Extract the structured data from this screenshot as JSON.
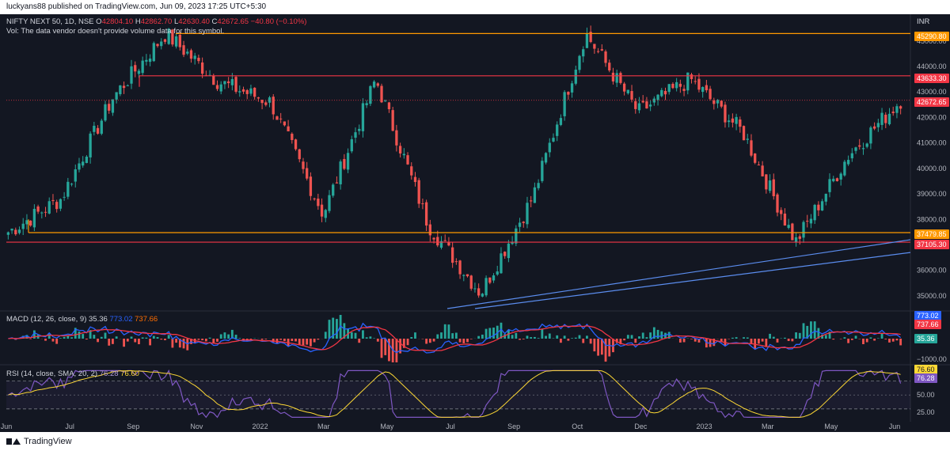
{
  "header": {
    "publisher": "luckyans88 published on TradingView.com, Jun 09, 2023 17:25 UTC+5:30"
  },
  "legend": {
    "symbol": "NIFTY NEXT 50, 1D, NSE",
    "open_label": "O",
    "open": "42804.10",
    "high_label": "H",
    "high": "42862.70",
    "low_label": "L",
    "low": "42630.40",
    "close_label": "C",
    "close": "42672.65",
    "change": "−40.80 (−0.10%)",
    "vol_note": "Vol: The data vendor doesn't provide volume data for this symbol."
  },
  "macd_legend": {
    "label": "MACD (12, 26, close, 9)",
    "hist": "35.36",
    "macd": "773.02",
    "signal": "737.66"
  },
  "rsi_legend": {
    "label": "RSI (14, close, SMA, 20, 2)",
    "rsi": "76.28",
    "sma": "76.60"
  },
  "price_axis": {
    "currency": "INR",
    "ticks": [
      "45000.00",
      "44000.00",
      "43000.00",
      "42000.00",
      "41000.00",
      "40000.00",
      "39000.00",
      "38000.00",
      "37000.00",
      "36000.00",
      "35000.00"
    ],
    "tags": [
      {
        "value": "45290.80",
        "color": "#ff9800"
      },
      {
        "value": "43633.30",
        "color": "#f23645"
      },
      {
        "value": "42672.65",
        "color": "#f23645"
      },
      {
        "value": "37479.85",
        "color": "#ff9800"
      },
      {
        "value": "37105.30",
        "color": "#f23645"
      }
    ]
  },
  "macd_axis": {
    "tags": [
      {
        "value": "773.02",
        "color": "#2962ff"
      },
      {
        "value": "737.66",
        "color": "#f23645"
      },
      {
        "value": "35.36",
        "color": "#26a69a"
      }
    ],
    "ticks": [
      "−1000.00"
    ]
  },
  "rsi_axis": {
    "tags": [
      {
        "value": "76.60",
        "color": "#fdd835"
      },
      {
        "value": "76.28",
        "color": "#7e57c2"
      }
    ],
    "ticks": [
      "50.00",
      "25.00"
    ]
  },
  "time_axis": [
    "Jun",
    "Jul",
    "Sep",
    "Nov",
    "2022",
    "Mar",
    "May",
    "Jul",
    "Sep",
    "Oct",
    "Dec",
    "2023",
    "Mar",
    "May",
    "Jun"
  ],
  "footer": {
    "brand": "TradingView"
  },
  "colors": {
    "up": "#26a69a",
    "down": "#ef5350",
    "support": "#ff9800",
    "resistance": "#f23645",
    "trend": "#5b8def"
  },
  "chart_data": {
    "type": "line",
    "title": "NIFTY NEXT 50, 1D, NSE",
    "approx_close_path": {
      "x": [
        "2021-06",
        "2021-07",
        "2021-09",
        "2021-10",
        "2021-11",
        "2022-01",
        "2022-03",
        "2022-04",
        "2022-05",
        "2022-06",
        "2022-07",
        "2022-09",
        "2022-10",
        "2022-12",
        "2023-01",
        "2023-03",
        "2023-05",
        "2023-06"
      ],
      "y": [
        37500,
        38800,
        42800,
        45290,
        43400,
        42600,
        38200,
        43500,
        37800,
        35100,
        38900,
        45300,
        42200,
        43500,
        41400,
        37100,
        40500,
        42672
      ]
    },
    "levels": [
      45290.8,
      43633.3,
      37479.85,
      37105.3
    ],
    "ylim": [
      34500,
      45800
    ]
  }
}
